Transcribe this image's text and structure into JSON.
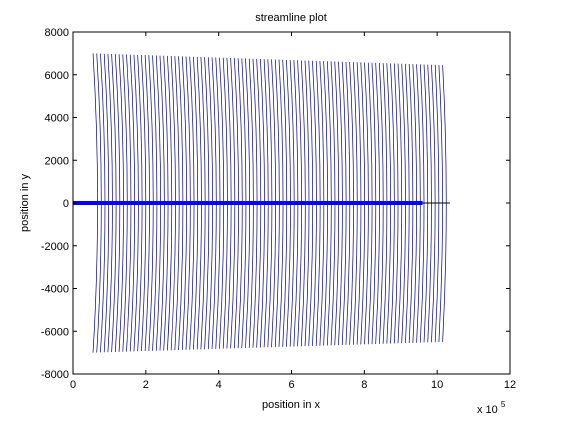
{
  "chart_data": {
    "type": "line",
    "title": "streamline plot",
    "xlabel": "position in x",
    "ylabel": "position in y",
    "x_exponent_base": "x 10",
    "x_exponent_power": "5",
    "x_scale": 100000,
    "xlim": [
      0,
      1200000
    ],
    "ylim": [
      -8000,
      8000
    ],
    "x_ticks": [
      0,
      200000,
      400000,
      600000,
      800000,
      1000000,
      1200000
    ],
    "x_tick_labels": [
      "0",
      "2",
      "4",
      "6",
      "8",
      "10",
      "12"
    ],
    "y_ticks": [
      -8000,
      -6000,
      -4000,
      -2000,
      0,
      2000,
      4000,
      6000,
      8000
    ],
    "y_tick_labels": [
      "-8000",
      "-6000",
      "-4000",
      "-2000",
      "0",
      "2000",
      "4000",
      "6000",
      "8000"
    ],
    "grid": false,
    "legend": "none",
    "streamlines": {
      "count": 95,
      "x_start_at_y0": 80000,
      "x_end_at_y0": 1035000,
      "left_edge": {
        "x_at_extreme": 55000,
        "y_top": 7000,
        "y_bottom": -7000
      },
      "right_edge": {
        "x_at_extreme": 1015000,
        "y_top": 6450,
        "y_bottom": -6500
      },
      "color": "#000080"
    },
    "series": [
      {
        "x": [
          0,
          960000
        ],
        "y": [
          0,
          0
        ],
        "color": "#0000ff"
      },
      {
        "x": [
          960000,
          1035000
        ],
        "y": [
          0,
          0
        ],
        "color": "#000000"
      }
    ]
  }
}
